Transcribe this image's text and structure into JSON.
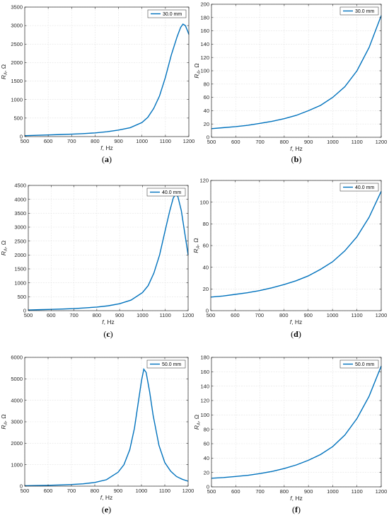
{
  "chart_data": [
    {
      "panel": "(a)",
      "type": "line",
      "xlabel_var": "f",
      "xlabel_unit": ", Hz",
      "ylabel_var": "R",
      "ylabel_sub": "A",
      "ylabel_unit": ", Ω",
      "xlim": [
        500,
        1200
      ],
      "ylim": [
        0,
        3500
      ],
      "xticks": [
        500,
        600,
        700,
        800,
        900,
        1000,
        1100,
        1200
      ],
      "yticks": [
        0,
        500,
        1000,
        1500,
        2000,
        2500,
        3000,
        3500
      ],
      "grid": true,
      "legend_position": "top-right",
      "series": [
        {
          "name": "30.0 mm",
          "color": "#0072BD",
          "x": [
            500,
            550,
            600,
            650,
            700,
            750,
            800,
            850,
            900,
            950,
            1000,
            1025,
            1050,
            1075,
            1100,
            1125,
            1150,
            1165,
            1175,
            1185,
            1195,
            1200
          ],
          "y": [
            25,
            35,
            45,
            55,
            65,
            80,
            100,
            130,
            175,
            240,
            380,
            520,
            760,
            1100,
            1600,
            2200,
            2700,
            2950,
            3040,
            3000,
            2850,
            2760
          ]
        }
      ]
    },
    {
      "panel": "(b)",
      "type": "line",
      "xlabel_var": "f",
      "xlabel_unit": ", Hz",
      "ylabel_var": "R",
      "ylabel_sub": "A",
      "ylabel_unit": ", Ω",
      "xlim": [
        500,
        1200
      ],
      "ylim": [
        0,
        200
      ],
      "xticks": [
        500,
        600,
        700,
        800,
        900,
        1000,
        1100,
        1200
      ],
      "yticks": [
        0,
        20,
        40,
        60,
        80,
        100,
        120,
        140,
        160,
        180,
        200
      ],
      "grid": true,
      "legend_position": "top-right",
      "series": [
        {
          "name": "30.0 mm",
          "color": "#0072BD",
          "x": [
            500,
            550,
            600,
            650,
            700,
            750,
            800,
            850,
            900,
            950,
            1000,
            1050,
            1100,
            1150,
            1200
          ],
          "y": [
            13,
            14.5,
            16,
            18,
            21,
            24,
            28,
            33,
            40,
            48,
            60,
            76,
            100,
            135,
            183
          ]
        }
      ]
    },
    {
      "panel": "(c)",
      "type": "line",
      "xlabel_var": "f",
      "xlabel_unit": ", Hz",
      "ylabel_var": "R",
      "ylabel_sub": "A",
      "ylabel_unit": ", Ω",
      "xlim": [
        500,
        1200
      ],
      "ylim": [
        0,
        4500
      ],
      "xticks": [
        500,
        600,
        700,
        800,
        900,
        1000,
        1100,
        1200
      ],
      "yticks": [
        0,
        500,
        1000,
        1500,
        2000,
        2500,
        3000,
        3500,
        4000,
        4500
      ],
      "grid": true,
      "legend_position": "top-right",
      "series": [
        {
          "name": "40.0 mm",
          "color": "#0072BD",
          "x": [
            500,
            550,
            600,
            650,
            700,
            750,
            800,
            850,
            900,
            950,
            1000,
            1025,
            1050,
            1075,
            1100,
            1120,
            1135,
            1145,
            1155,
            1170,
            1185,
            1200
          ],
          "y": [
            25,
            35,
            45,
            60,
            75,
            100,
            130,
            175,
            250,
            380,
            650,
            900,
            1350,
            2000,
            2900,
            3600,
            4050,
            4180,
            4100,
            3600,
            2800,
            2000
          ]
        }
      ]
    },
    {
      "panel": "(d)",
      "type": "line",
      "xlabel_var": "f",
      "xlabel_unit": ", Hz",
      "ylabel_var": "R",
      "ylabel_sub": "A",
      "ylabel_unit": ", Ω",
      "xlim": [
        500,
        1200
      ],
      "ylim": [
        0,
        120
      ],
      "xticks": [
        500,
        600,
        700,
        800,
        900,
        1000,
        1100,
        1200
      ],
      "yticks": [
        0,
        20,
        40,
        60,
        80,
        100,
        120
      ],
      "grid": true,
      "legend_position": "top-right",
      "series": [
        {
          "name": "40.0 mm",
          "color": "#0072BD",
          "x": [
            500,
            550,
            600,
            650,
            700,
            750,
            800,
            850,
            900,
            950,
            1000,
            1050,
            1100,
            1150,
            1200
          ],
          "y": [
            12.5,
            13.5,
            15,
            16.5,
            18.5,
            21,
            24,
            27.5,
            32,
            38,
            45,
            55,
            68,
            86,
            110
          ]
        }
      ]
    },
    {
      "panel": "(e)",
      "type": "line",
      "xlabel_var": "f",
      "xlabel_unit": ", Hz",
      "ylabel_var": "R",
      "ylabel_sub": "A",
      "ylabel_unit": ", Ω",
      "xlim": [
        500,
        1200
      ],
      "ylim": [
        0,
        6000
      ],
      "xticks": [
        500,
        600,
        700,
        800,
        900,
        1000,
        1100,
        1200
      ],
      "yticks": [
        0,
        1000,
        2000,
        3000,
        4000,
        5000,
        6000
      ],
      "grid": true,
      "legend_position": "top-right",
      "series": [
        {
          "name": "50.0 mm",
          "color": "#0072BD",
          "x": [
            500,
            550,
            600,
            650,
            700,
            750,
            800,
            850,
            900,
            925,
            950,
            970,
            985,
            1000,
            1010,
            1020,
            1035,
            1050,
            1075,
            1100,
            1125,
            1150,
            1175,
            1200
          ],
          "y": [
            20,
            30,
            40,
            55,
            75,
            110,
            170,
            300,
            650,
            1000,
            1700,
            2700,
            3800,
            4900,
            5450,
            5300,
            4400,
            3300,
            1900,
            1100,
            700,
            450,
            320,
            230
          ]
        }
      ]
    },
    {
      "panel": "(f)",
      "type": "line",
      "xlabel_var": "f",
      "xlabel_unit": ", Hz",
      "ylabel_var": "R",
      "ylabel_sub": "A",
      "ylabel_unit": ", Ω",
      "xlim": [
        500,
        1200
      ],
      "ylim": [
        0,
        180
      ],
      "xticks": [
        500,
        600,
        700,
        800,
        900,
        1000,
        1100,
        1200
      ],
      "yticks": [
        0,
        20,
        40,
        60,
        80,
        100,
        120,
        140,
        160,
        180
      ],
      "grid": true,
      "legend_position": "top-right",
      "series": [
        {
          "name": "50.0 mm",
          "color": "#0072BD",
          "x": [
            500,
            550,
            600,
            650,
            700,
            750,
            800,
            850,
            900,
            950,
            1000,
            1050,
            1100,
            1150,
            1200
          ],
          "y": [
            12,
            13,
            14.5,
            16,
            18.5,
            21.5,
            25.5,
            30.5,
            37,
            45,
            56,
            72,
            95,
            126,
            168
          ]
        }
      ]
    }
  ]
}
